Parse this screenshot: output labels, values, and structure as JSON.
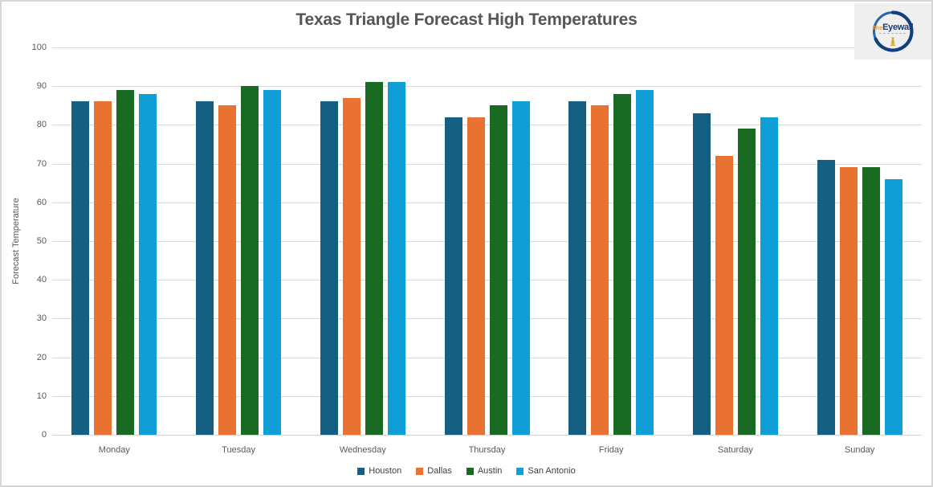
{
  "chart_data": {
    "type": "bar",
    "title": "Texas Triangle Forecast High Temperatures",
    "categories": [
      "Monday",
      "Tuesday",
      "Wednesday",
      "Thursday",
      "Friday",
      "Saturday",
      "Sunday"
    ],
    "series": [
      {
        "name": "Houston",
        "color": "#156082",
        "values": [
          86,
          86,
          86,
          82,
          86,
          83,
          71
        ]
      },
      {
        "name": "Dallas",
        "color": "#E97132",
        "values": [
          86,
          85,
          87,
          82,
          85,
          72,
          69
        ]
      },
      {
        "name": "Austin",
        "color": "#196B24",
        "values": [
          89,
          90,
          91,
          85,
          88,
          79,
          69
        ]
      },
      {
        "name": "San Antonio",
        "color": "#0F9ED5",
        "values": [
          88,
          89,
          91,
          86,
          89,
          82,
          66
        ]
      }
    ],
    "xlabel": "",
    "ylabel": "Forecast Temperature",
    "ylim": [
      0,
      100
    ],
    "ytick_step": 10,
    "grid": true,
    "legend_position": "bottom",
    "gridline_color": "#D9D9D9",
    "text_color": "#595959"
  },
  "logo": {
    "prefix": "The",
    "name": "Eyewall"
  }
}
